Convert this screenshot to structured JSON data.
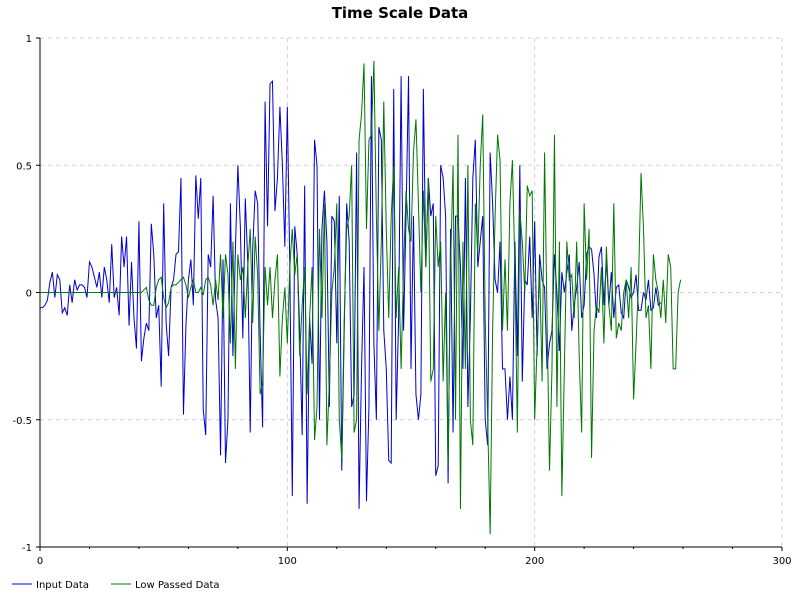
{
  "chart_data": {
    "type": "line",
    "title": "Time Scale Data",
    "xlabel": "",
    "ylabel": "",
    "xlim": [
      0,
      300
    ],
    "ylim": [
      -1,
      1
    ],
    "x_ticks": [
      0,
      100,
      200,
      300
    ],
    "x_tick_labels": [
      "0",
      "100",
      "200",
      "300"
    ],
    "y_ticks": [
      1,
      0.5,
      0,
      -0.5,
      -1
    ],
    "y_tick_labels": [
      "1",
      "0.5",
      "0",
      "-0.5",
      "-1"
    ],
    "grid": true,
    "legend_position": "bottom-left",
    "series": [
      {
        "name": "Input Data",
        "color": "#0000cc",
        "x_start": 0,
        "x_step": 1,
        "values": [
          -0.06,
          -0.06,
          -0.05,
          -0.03,
          0.04,
          0.08,
          -0.02,
          0.07,
          0.05,
          -0.08,
          -0.06,
          -0.09,
          0.03,
          -0.04,
          0.05,
          0.01,
          0.03,
          0.03,
          0.02,
          -0.02,
          0.12,
          0.1,
          0.06,
          0.02,
          0.08,
          -0.02,
          0.1,
          0.05,
          -0.04,
          0.19,
          -0.02,
          0.02,
          -0.09,
          0.22,
          0.1,
          0.22,
          -0.13,
          0.12,
          -0.1,
          -0.22,
          0.28,
          -0.27,
          -0.18,
          -0.12,
          -0.15,
          0.27,
          0.15,
          -0.1,
          -0.05,
          -0.37,
          0.35,
          -0.12,
          -0.25,
          0.02,
          0.05,
          0.15,
          0.16,
          0.45,
          -0.48,
          -0.13,
          0.05,
          0.13,
          -0.05,
          0.46,
          0.29,
          0.45,
          -0.46,
          -0.56,
          0.15,
          0.1,
          0.38,
          -0.03,
          -0.1,
          -0.64,
          0.13,
          -0.67,
          -0.5,
          0.35,
          -0.25,
          0.17,
          0.5,
          0.26,
          -0.18,
          0.37,
          0.12,
          -0.55,
          0.17,
          0.4,
          0.35,
          -0.16,
          -0.53,
          0.75,
          0.26,
          0.82,
          0.83,
          0.32,
          0.45,
          0.73,
          0.5,
          0.18,
          0.73,
          0.1,
          -0.8,
          0.26,
          0.15,
          -0.15,
          -0.56,
          0.42,
          -0.83,
          -0.1,
          -0.28,
          0.6,
          0.5,
          -0.5,
          0.25,
          0.4,
          0.2,
          -0.45,
          0.3,
          0.28,
          -0.2,
          0.38,
          -0.7,
          -0.15,
          0.35,
          0.2,
          -0.45,
          -0.4,
          0.55,
          -0.85,
          -0.3,
          0.1,
          -0.82,
          -0.45,
          0.85,
          -0.2,
          -0.5,
          0.65,
          0.6,
          -0.15,
          -0.3,
          -0.66,
          -0.67,
          0.8,
          -0.5,
          -0.1,
          0.85,
          -0.15,
          0.3,
          0.85,
          -0.3,
          0.3,
          -0.4,
          -0.5,
          -0.4,
          0.8,
          0.1,
          0.45,
          0.3,
          0.35,
          -0.72,
          -0.68,
          0.5,
          0.45,
          0.3,
          -0.75,
          0.25,
          -0.55,
          0.3,
          0.3,
          0.1,
          -0.3,
          0.45,
          -0.45,
          -0.1,
          0.45,
          0.6,
          0.1,
          0.2,
          0.3,
          -0.5,
          -0.6,
          0.55,
          0.35,
          0.05,
          0.0,
          0.2,
          -0.3,
          -0.3,
          -0.5,
          -0.33,
          -0.5,
          0.2,
          -0.25,
          0.5,
          -0.35,
          0.05,
          0.03,
          0.22,
          -0.1,
          0.28,
          -0.25,
          0.15,
          0.05,
          0.02,
          -0.3,
          -0.2,
          -0.15,
          0.15,
          0.0,
          -0.23,
          0.08,
          0.0,
          0.08,
          0.15,
          -0.15,
          -0.05,
          0.02,
          0.12,
          -0.1,
          -0.05,
          0.15,
          0.18,
          0.17,
          0.07,
          -0.1,
          0.14,
          0.18,
          -0.05,
          0.13,
          -0.05,
          0.08,
          -0.1,
          0.02,
          0.03,
          -0.08,
          -0.1,
          0.05,
          0.02,
          -0.02,
          0.0,
          0.07,
          -0.07,
          -0.07,
          0.0,
          -0.03,
          0.05,
          -0.07,
          -0.06,
          0.02,
          -0.05,
          -0.04
        ]
      },
      {
        "name": "Low Passed Data",
        "color": "#007700",
        "x_start": 0,
        "x_step": 1,
        "values": [
          0,
          0,
          0,
          0,
          0,
          0,
          0,
          0,
          0,
          0,
          0,
          0,
          0,
          0,
          0,
          0,
          0,
          0,
          0,
          0,
          0,
          0,
          0,
          0,
          0,
          0,
          0,
          0,
          0,
          0,
          0,
          0,
          0,
          0,
          0,
          0,
          0,
          0,
          0,
          0,
          0,
          0,
          0.01,
          0.02,
          -0.03,
          -0.05,
          -0.05,
          0.02,
          0.05,
          0.06,
          -0.02,
          -0.06,
          -0.04,
          0.02,
          0.03,
          0.03,
          0.04,
          0.05,
          0.06,
          0.03,
          -0.02,
          0.02,
          0.05,
          0.0,
          0.0,
          0.02,
          -0.01,
          0.05,
          0.06,
          0.03,
          -0.05,
          0.05,
          -0.03,
          0.15,
          -0.1,
          0.15,
          0.07,
          -0.2,
          0.2,
          -0.3,
          0.15,
          0.05,
          0.1,
          -0.1,
          0.1,
          0.25,
          -0.12,
          0.22,
          0.07,
          -0.4,
          -0.35,
          0.1,
          -0.05,
          0.1,
          -0.1,
          0.05,
          0.15,
          -0.33,
          -0.1,
          0.02,
          -0.2,
          0.1,
          0.25,
          0.07,
          0.15,
          -0.25,
          -0.05,
          0.1,
          -0.4,
          -0.1,
          0.1,
          -0.58,
          -0.45,
          0.25,
          -0.1,
          0.35,
          -0.6,
          -0.35,
          0.0,
          0.1,
          0.35,
          -0.5,
          -0.65,
          -0.1,
          0.25,
          0.3,
          0.5,
          -0.55,
          -0.5,
          0.6,
          0.7,
          0.9,
          0.25,
          0.6,
          0.62,
          0.91,
          0.3,
          -0.15,
          0.2,
          0.75,
          0.25,
          -0.1,
          0.3,
          0.5,
          -0.1,
          0.1,
          -0.3,
          0.1,
          0.4,
          0.25,
          0.2,
          0.55,
          0.68,
          0.35,
          0.0,
          0.4,
          0.1,
          0.45,
          -0.35,
          -0.3,
          0.3,
          0.1,
          0.2,
          -0.35,
          0.0,
          -0.68,
          0.1,
          0.5,
          -0.5,
          0.62,
          -0.85,
          0.2,
          -0.3,
          0.5,
          -0.5,
          -0.6,
          0.35,
          0.15,
          0.5,
          0.7,
          -0.1,
          -0.5,
          -0.95,
          -0.15,
          0.3,
          0.62,
          0.52,
          -0.15,
          0.13,
          -0.15,
          0.35,
          0.52,
          0.1,
          -0.55,
          0.32,
          0.2,
          0.0,
          0.42,
          0.38,
          0.4,
          -0.5,
          -0.2,
          0.1,
          -0.35,
          0.55,
          -0.1,
          -0.7,
          -0.3,
          0.62,
          -0.45,
          0.2,
          -0.8,
          -0.3,
          0.2,
          0.05,
          0.07,
          -0.1,
          0.2,
          -0.25,
          -0.55,
          0.35,
          0.05,
          0.25,
          -0.65,
          -0.15,
          -0.05,
          -0.08,
          0.1,
          -0.2,
          0.18,
          -0.05,
          -0.15,
          0.35,
          -0.18,
          -0.12,
          -0.15,
          0.0,
          0.05,
          -0.1,
          0.1,
          -0.42,
          -0.2,
          0.05,
          0.47,
          0.25,
          -0.1,
          -0.05,
          -0.3,
          0.15,
          0.05,
          0.0,
          -0.1,
          0.05,
          -0.12,
          0.15,
          0.1,
          -0.3,
          -0.3,
          0.0,
          0.05
        ]
      }
    ]
  }
}
